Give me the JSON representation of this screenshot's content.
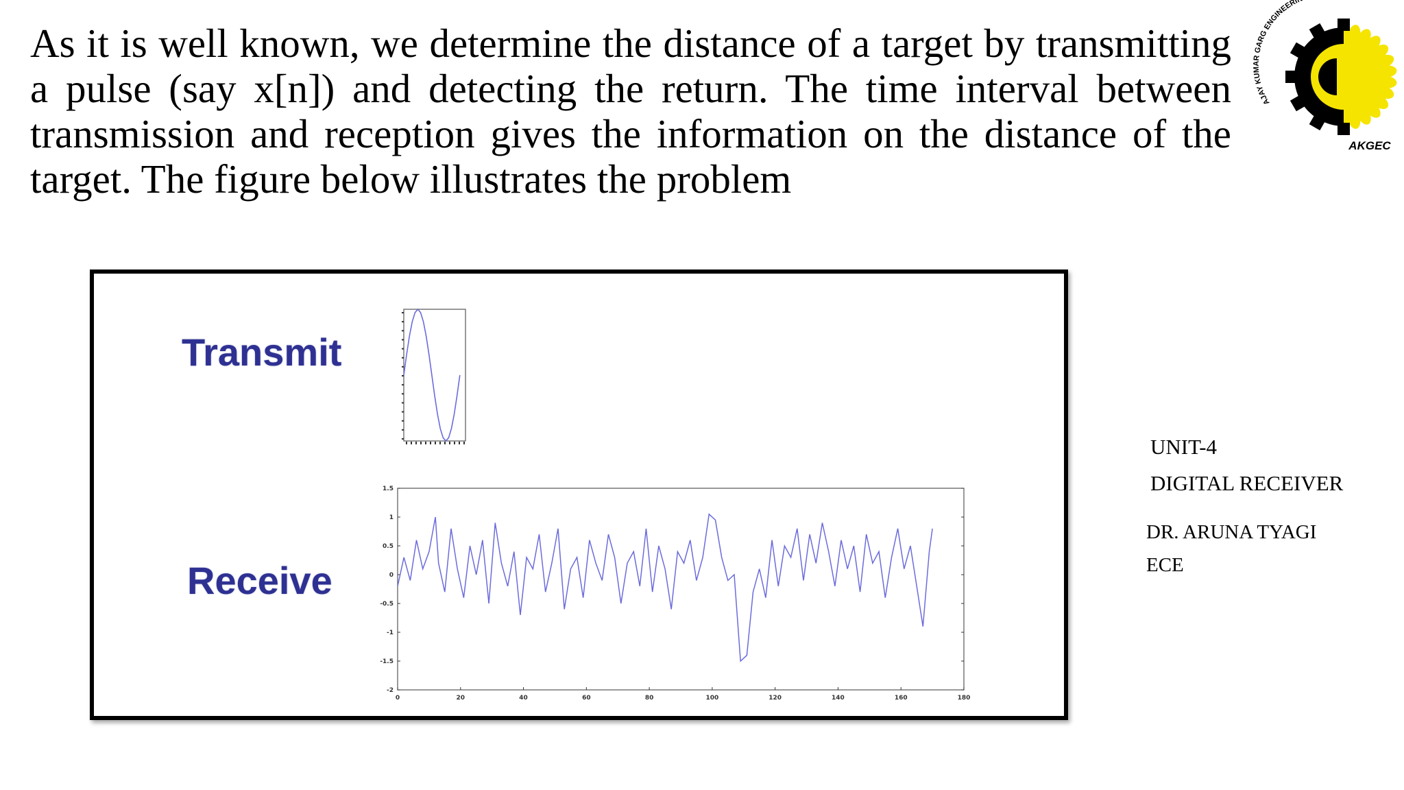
{
  "slide": {
    "intro_text": "As it is well known, we determine the distance of a target by transmitting a pulse (say x[n]) and detecting the return. The time interval between transmission and reception gives the information on the distance of the target. The figure below illustrates the problem",
    "unit": "UNIT-4",
    "subject": "DIGITAL RECEIVER",
    "author": "DR. ARUNA TYAGI",
    "department": "ECE"
  },
  "logo": {
    "ring_text": "AJAY KUMAR GARG ENGINEERING COLLEGE",
    "abbr": "AKGEC",
    "colors": {
      "gear": "#000000",
      "sun": "#f5e400"
    }
  },
  "figure": {
    "transmit_label": "Transmit",
    "receive_label": "Receive",
    "line_color": "#6b6bdc"
  },
  "chart_data": [
    {
      "type": "line",
      "series": [
        {
          "values": [
            0.0,
            0.31,
            0.59,
            0.81,
            0.95,
            1.0,
            0.95,
            0.81,
            0.59,
            0.31,
            0.0,
            -0.31,
            -0.59,
            -0.81,
            -0.95,
            -1.0,
            -0.95,
            -0.81,
            -0.59,
            -0.31,
            0.0
          ]
        }
      ],
      "x": [
        0,
        0.5,
        1,
        1.5,
        2,
        2.5,
        3,
        3.5,
        4,
        4.5,
        5,
        5.5,
        6,
        6.5,
        7,
        7.5,
        8,
        8.5,
        9,
        9.5,
        10
      ],
      "ylim": [
        -1,
        1
      ],
      "grid": false
    },
    {
      "type": "line",
      "x_ticks": [
        "0",
        "20",
        "40",
        "60",
        "80",
        "100",
        "120",
        "140",
        "160",
        "180"
      ],
      "y_ticks": [
        "-2",
        "-1.5",
        "-1",
        "-0.5",
        "0",
        "0.5",
        "1",
        "1.5"
      ],
      "xlim": [
        0,
        180
      ],
      "ylim": [
        -2,
        1.5
      ],
      "grid": false,
      "series": [
        {
          "x": [
            0,
            2,
            4,
            6,
            8,
            10,
            12,
            13,
            15,
            17,
            19,
            21,
            23,
            25,
            27,
            29,
            31,
            33,
            35,
            37,
            39,
            41,
            43,
            45,
            47,
            49,
            51,
            53,
            55,
            57,
            59,
            61,
            63,
            65,
            67,
            69,
            71,
            73,
            75,
            77,
            79,
            81,
            83,
            85,
            87,
            89,
            91,
            93,
            95,
            97,
            99,
            101,
            103,
            105,
            107,
            109,
            111,
            113,
            115,
            117,
            119,
            121,
            123,
            125,
            127,
            129,
            131,
            133,
            135,
            137,
            139,
            141,
            143,
            145,
            147,
            149,
            151,
            153,
            155,
            157,
            159,
            161,
            163,
            165,
            167,
            169,
            170
          ],
          "values": [
            -0.2,
            0.3,
            -0.1,
            0.6,
            0.1,
            0.4,
            1.0,
            0.2,
            -0.3,
            0.8,
            0.1,
            -0.4,
            0.5,
            0.0,
            0.6,
            -0.5,
            0.9,
            0.2,
            -0.2,
            0.4,
            -0.7,
            0.3,
            0.1,
            0.7,
            -0.3,
            0.2,
            0.8,
            -0.6,
            0.1,
            0.3,
            -0.4,
            0.6,
            0.2,
            -0.1,
            0.7,
            0.3,
            -0.5,
            0.2,
            0.4,
            -0.2,
            0.8,
            -0.3,
            0.5,
            0.1,
            -0.6,
            0.4,
            0.2,
            0.6,
            -0.1,
            0.3,
            1.05,
            0.95,
            0.3,
            -0.1,
            0.0,
            -1.5,
            -1.4,
            -0.3,
            0.1,
            -0.4,
            0.6,
            -0.2,
            0.5,
            0.3,
            0.8,
            -0.1,
            0.7,
            0.2,
            0.9,
            0.4,
            -0.2,
            0.6,
            0.1,
            0.5,
            -0.3,
            0.7,
            0.2,
            0.4,
            -0.4,
            0.3,
            0.8,
            0.1,
            0.5,
            -0.2,
            -0.9,
            0.4,
            0.8
          ]
        }
      ]
    }
  ]
}
